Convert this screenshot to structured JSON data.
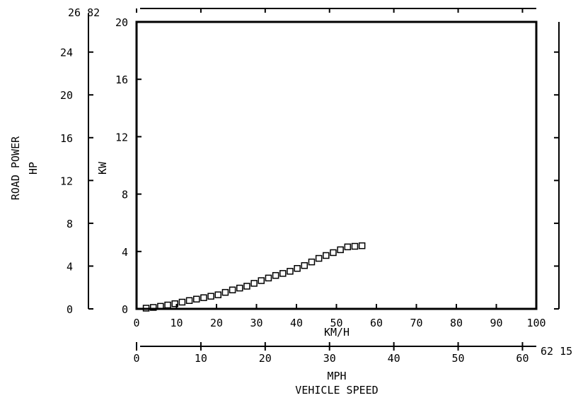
{
  "chart_data": {
    "type": "scatter",
    "marker": "hollow-square",
    "color": "#000000",
    "grid": false,
    "xlabel": "KM/H",
    "xlabel_secondary": "MPH",
    "xlabel_bottom": "VEHICLE SPEED",
    "ylabel": "KW",
    "ylabel_secondary": "ROAD POWER",
    "ylabel_secondary_unit": "HP",
    "x_kmh": {
      "lim": [
        0,
        100
      ],
      "ticks": [
        "0",
        "10",
        "20",
        "30",
        "40",
        "50",
        "60",
        "70",
        "80",
        "90",
        "100"
      ]
    },
    "x_mph": {
      "lim": [
        0,
        62.15
      ],
      "ticks": [
        "0",
        "10",
        "20",
        "30",
        "40",
        "50",
        "60"
      ],
      "end_label": "62 15"
    },
    "y_kw": {
      "lim": [
        0,
        20
      ],
      "ticks": [
        "0",
        "4",
        "8",
        "12",
        "16",
        "20"
      ]
    },
    "y_hp": {
      "lim": [
        0,
        26.82
      ],
      "ticks": [
        "0",
        "4",
        "8",
        "12",
        "16",
        "20",
        "24"
      ],
      "end_label": "26 82"
    },
    "series": [
      {
        "x": [
          2.4,
          4.2,
          6.0,
          7.8,
          9.6,
          11.4,
          13.2,
          15.0,
          16.8,
          18.6,
          20.4,
          22.2,
          24.0,
          25.8,
          27.6,
          29.4,
          31.2,
          33.0,
          34.8,
          36.6,
          38.4,
          40.2,
          42.0,
          43.8,
          45.6,
          47.4,
          49.2,
          51.0,
          52.8,
          54.6,
          56.4
        ],
        "y": [
          0.05,
          0.1,
          0.18,
          0.27,
          0.36,
          0.47,
          0.58,
          0.68,
          0.78,
          0.88,
          0.98,
          1.15,
          1.32,
          1.45,
          1.58,
          1.78,
          1.97,
          2.15,
          2.33,
          2.47,
          2.62,
          2.82,
          3.02,
          3.27,
          3.52,
          3.72,
          3.92,
          4.12,
          4.32,
          4.36,
          4.4
        ]
      }
    ]
  }
}
